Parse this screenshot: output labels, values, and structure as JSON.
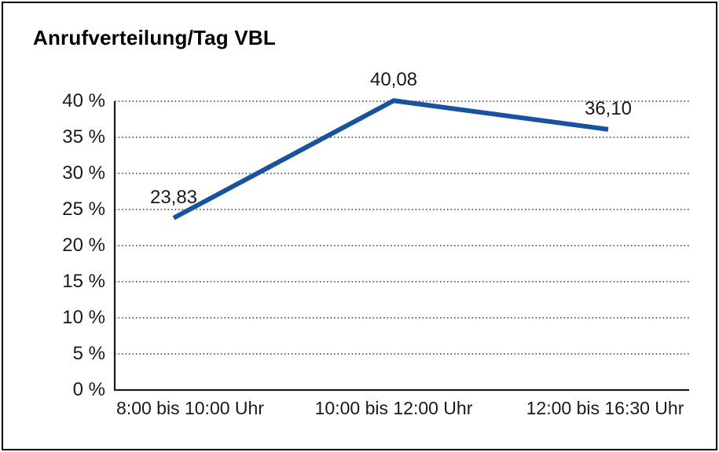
{
  "window": {
    "background": "#ffffff",
    "border_color": "#000000"
  },
  "chart_data": {
    "type": "line",
    "title": "Anrufverteilung/Tag VBL",
    "categories": [
      "8:00 bis 10:00 Uhr",
      "10:00 bis 12:00 Uhr",
      "12:00 bis 16:30 Uhr"
    ],
    "values": [
      23.83,
      40.08,
      36.1
    ],
    "data_labels": [
      "23,83",
      "40,08",
      "36,10"
    ],
    "xlabel": "",
    "ylabel": "",
    "ylim": [
      0,
      40
    ],
    "ytick_step": 5,
    "ytick_labels": [
      "0 %",
      "5 %",
      "10 %",
      "15 %",
      "20 %",
      "25 %",
      "30 %",
      "35 %",
      "40 %"
    ],
    "grid": "horizontal-dotted",
    "legend": "none",
    "line_color": "#17539E",
    "grid_color": "#3c3c3c",
    "axis_color": "#1a1a1a",
    "text_color": "#1a1a1a"
  }
}
